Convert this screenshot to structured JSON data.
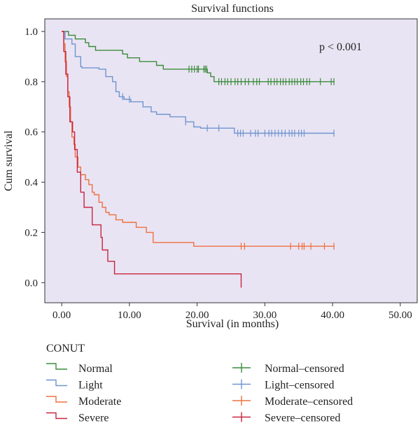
{
  "chart_data": {
    "type": "line",
    "title": "Survival functions",
    "xlabel": "Survival (in months)",
    "ylabel": "Cum survival",
    "xlim": [
      -2.5,
      52.5
    ],
    "ylim": [
      -0.08,
      1.05
    ],
    "x_ticks": [
      0,
      10,
      20,
      30,
      40,
      50
    ],
    "x_tick_labels": [
      "0.00",
      "10.00",
      "20.00",
      "30.00",
      "40.00",
      "50.00"
    ],
    "y_ticks": [
      0.0,
      0.2,
      0.4,
      0.6,
      0.8,
      1.0
    ],
    "y_tick_labels": [
      "0.0",
      "0.2",
      "0.4",
      "0.6",
      "0.8",
      "1.0"
    ],
    "annotation": "p < 0.001",
    "plot_background": "#e9e4f3",
    "legend_title": "CONUT",
    "legend_position": "bottom",
    "series": [
      {
        "name": "Normal",
        "censored_name": "Normal–censored",
        "color": "#3b8c3b",
        "steps": [
          [
            0,
            1.0
          ],
          [
            1.0,
            0.985
          ],
          [
            2.0,
            0.97
          ],
          [
            3.5,
            0.955
          ],
          [
            4.0,
            0.94
          ],
          [
            5.0,
            0.925
          ],
          [
            9.0,
            0.91
          ],
          [
            9.7,
            0.895
          ],
          [
            11.5,
            0.88
          ],
          [
            14.0,
            0.865
          ],
          [
            15.0,
            0.85
          ],
          [
            21.5,
            0.835
          ],
          [
            22.0,
            0.82
          ],
          [
            22.5,
            0.8
          ],
          [
            40.3,
            0.8
          ]
        ],
        "censored_x": [
          18.8,
          19.2,
          19.6,
          20.0,
          20.2,
          21.0,
          21.2,
          21.4,
          23.2,
          23.6,
          24.1,
          24.5,
          25.0,
          25.6,
          26.0,
          26.5,
          27.1,
          27.6,
          28.3,
          28.8,
          29.2,
          30.5,
          30.9,
          31.4,
          31.8,
          32.3,
          32.7,
          33.1,
          33.6,
          34.0,
          34.4,
          34.8,
          35.3,
          35.7,
          36.2,
          36.6,
          38.2,
          39.8,
          40.2
        ]
      },
      {
        "name": "Light",
        "censored_name": "Light–censored",
        "color": "#6f95d0",
        "steps": [
          [
            0,
            1.0
          ],
          [
            0.5,
            0.97
          ],
          [
            1.5,
            0.95
          ],
          [
            2.0,
            0.9
          ],
          [
            2.8,
            0.86
          ],
          [
            3.0,
            0.855
          ],
          [
            5.5,
            0.85
          ],
          [
            6.5,
            0.82
          ],
          [
            7.5,
            0.8
          ],
          [
            8.0,
            0.76
          ],
          [
            8.5,
            0.74
          ],
          [
            9.2,
            0.73
          ],
          [
            10.2,
            0.72
          ],
          [
            12.0,
            0.7
          ],
          [
            13.2,
            0.68
          ],
          [
            14.0,
            0.67
          ],
          [
            16.0,
            0.66
          ],
          [
            18.3,
            0.64
          ],
          [
            19.5,
            0.62
          ],
          [
            20.5,
            0.615
          ],
          [
            25.5,
            0.595
          ],
          [
            40.3,
            0.595
          ]
        ],
        "censored_x": [
          9.0,
          10.0,
          18.3,
          21.5,
          23.2,
          26.0,
          26.4,
          26.8,
          27.9,
          28.6,
          29.0,
          30.0,
          30.6,
          31.0,
          31.5,
          32.0,
          32.5,
          33.0,
          33.6,
          34.0,
          34.4,
          35.0,
          35.4,
          35.8,
          40.2
        ]
      },
      {
        "name": "Moderate",
        "censored_name": "Moderate–censored",
        "color": "#ee7040",
        "steps": [
          [
            0,
            1.0
          ],
          [
            0.3,
            0.95
          ],
          [
            0.5,
            0.88
          ],
          [
            0.7,
            0.82
          ],
          [
            0.9,
            0.76
          ],
          [
            1.1,
            0.7
          ],
          [
            1.3,
            0.64
          ],
          [
            1.5,
            0.58
          ],
          [
            1.8,
            0.55
          ],
          [
            2.0,
            0.5
          ],
          [
            2.4,
            0.46
          ],
          [
            2.8,
            0.43
          ],
          [
            3.5,
            0.41
          ],
          [
            4.0,
            0.39
          ],
          [
            4.5,
            0.36
          ],
          [
            4.8,
            0.35
          ],
          [
            5.5,
            0.32
          ],
          [
            6.0,
            0.3
          ],
          [
            6.5,
            0.28
          ],
          [
            7.0,
            0.27
          ],
          [
            8.0,
            0.25
          ],
          [
            9.0,
            0.24
          ],
          [
            11.0,
            0.22
          ],
          [
            12.5,
            0.2
          ],
          [
            13.5,
            0.16
          ],
          [
            19.5,
            0.145
          ],
          [
            40.3,
            0.145
          ]
        ],
        "censored_x": [
          26.5,
          27.0,
          33.8,
          35.0,
          35.5,
          35.8,
          36.8,
          38.8,
          40.2
        ]
      },
      {
        "name": "Severe",
        "censored_name": "Severe–censored",
        "color": "#c8253f",
        "steps": [
          [
            0,
            1.0
          ],
          [
            0.3,
            0.92
          ],
          [
            0.6,
            0.83
          ],
          [
            0.9,
            0.74
          ],
          [
            1.2,
            0.64
          ],
          [
            1.6,
            0.6
          ],
          [
            1.9,
            0.53
          ],
          [
            2.3,
            0.44
          ],
          [
            2.8,
            0.36
          ],
          [
            3.3,
            0.3
          ],
          [
            4.5,
            0.23
          ],
          [
            5.8,
            0.18
          ],
          [
            6.0,
            0.13
          ],
          [
            6.8,
            0.085
          ],
          [
            7.8,
            0.035
          ],
          [
            26.5,
            0.035
          ],
          [
            26.5,
            -0.02
          ]
        ],
        "censored_x": []
      }
    ]
  }
}
